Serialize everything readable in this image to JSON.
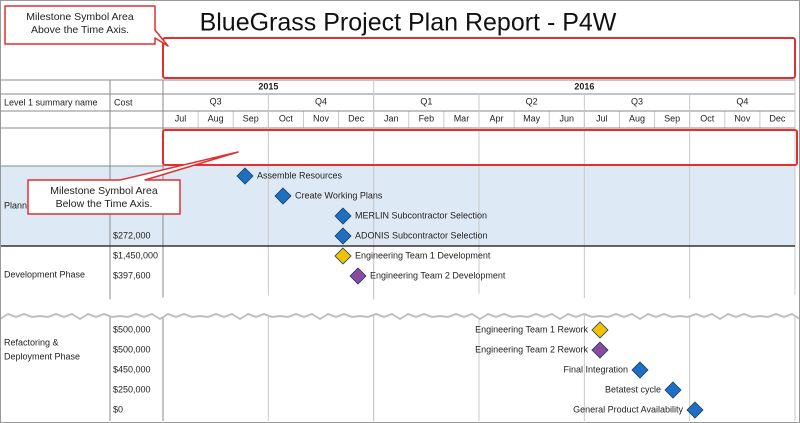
{
  "title": "BlueGrass Project Plan Report - P4W",
  "callouts": {
    "above": [
      "Milestone Symbol Area",
      "Above the Time Axis."
    ],
    "below": [
      "Milestone Symbol Area",
      "Below the Time Axis."
    ]
  },
  "table": {
    "headers": {
      "name": "Level 1 summary name",
      "cost": "Cost"
    },
    "years": [
      "2015",
      "2016"
    ],
    "quarters": [
      "Q3",
      "Q4",
      "Q1",
      "Q2",
      "Q3",
      "Q4"
    ],
    "months": [
      "Jul",
      "Aug",
      "Sep",
      "Oct",
      "Nov",
      "Dec",
      "Jan",
      "Feb",
      "Mar",
      "Apr",
      "May",
      "Jun",
      "Jul",
      "Aug",
      "Sep",
      "Oct",
      "Nov",
      "Dec"
    ],
    "groups": [
      {
        "name": [
          "Plann"
        ],
        "rows": [
          {
            "milestone": "Assemble Resources",
            "color": "#1f6fc0"
          },
          {
            "milestone": "Create Working Plans",
            "color": "#1f6fc0"
          },
          {
            "milestone": "MERLIN Subcontractor Selection",
            "color": "#1f6fc0"
          },
          {
            "cost": "$272,000",
            "milestone": "ADONIS Subcontractor Selection",
            "color": "#1f6fc0"
          }
        ]
      },
      {
        "name": [
          "Development Phase"
        ],
        "rows": [
          {
            "cost": "$1,450,000",
            "milestone": "Engineering Team 1 Development",
            "color": "#f2c200"
          },
          {
            "cost": "$397,600",
            "milestone": "Engineering Team 2 Development",
            "color": "#8b4a9e"
          }
        ]
      },
      {
        "name": [
          "Refactoring &",
          "Deployment Phase"
        ],
        "rows": [
          {
            "cost": "$500,000",
            "milestone": "Engineering Team 1 Rework",
            "color": "#f2c200"
          },
          {
            "cost": "$500,000",
            "milestone": "Engineering Team 2 Rework",
            "color": "#8b4a9e"
          },
          {
            "cost": "$450,000",
            "milestone": "Final Integration",
            "color": "#1f6fc0"
          },
          {
            "cost": "$250,000",
            "milestone": "Betatest cycle",
            "color": "#1f6fc0"
          },
          {
            "cost": "$0",
            "milestone": "General Product Availability",
            "color": "#1f6fc0"
          }
        ]
      }
    ]
  }
}
